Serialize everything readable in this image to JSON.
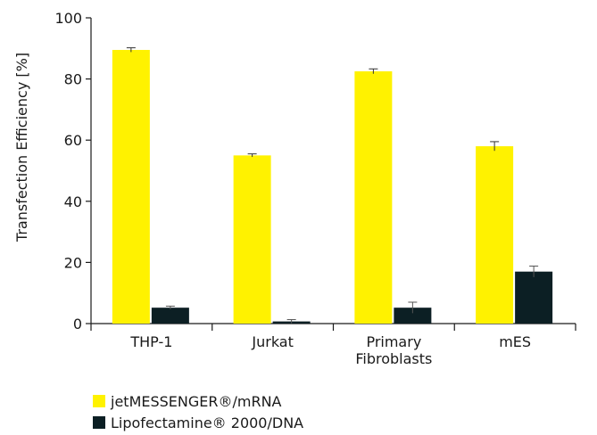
{
  "chart_data": {
    "type": "bar",
    "title": "",
    "xlabel": "",
    "ylabel": "Transfection Efficiency [%]",
    "ylim": [
      0,
      100
    ],
    "yticks": [
      0,
      20,
      40,
      60,
      80,
      100
    ],
    "categories": [
      [
        "THP-1"
      ],
      [
        "Jurkat"
      ],
      [
        "Primary",
        "Fibroblasts"
      ],
      [
        "mES"
      ]
    ],
    "series": [
      {
        "name": "jetMESSENGER®/mRNA",
        "color": "#fff200",
        "values": [
          89.5,
          55.0,
          82.5,
          58.0
        ],
        "errors": [
          0.7,
          0.5,
          0.8,
          1.5
        ]
      },
      {
        "name": "Lipofectamine® 2000/DNA",
        "color": "#0c1f24",
        "values": [
          5.2,
          0.7,
          5.2,
          17.0
        ],
        "errors": [
          0.5,
          0.6,
          1.8,
          1.8
        ]
      }
    ],
    "legend_position": "bottom-left",
    "grid": false
  }
}
